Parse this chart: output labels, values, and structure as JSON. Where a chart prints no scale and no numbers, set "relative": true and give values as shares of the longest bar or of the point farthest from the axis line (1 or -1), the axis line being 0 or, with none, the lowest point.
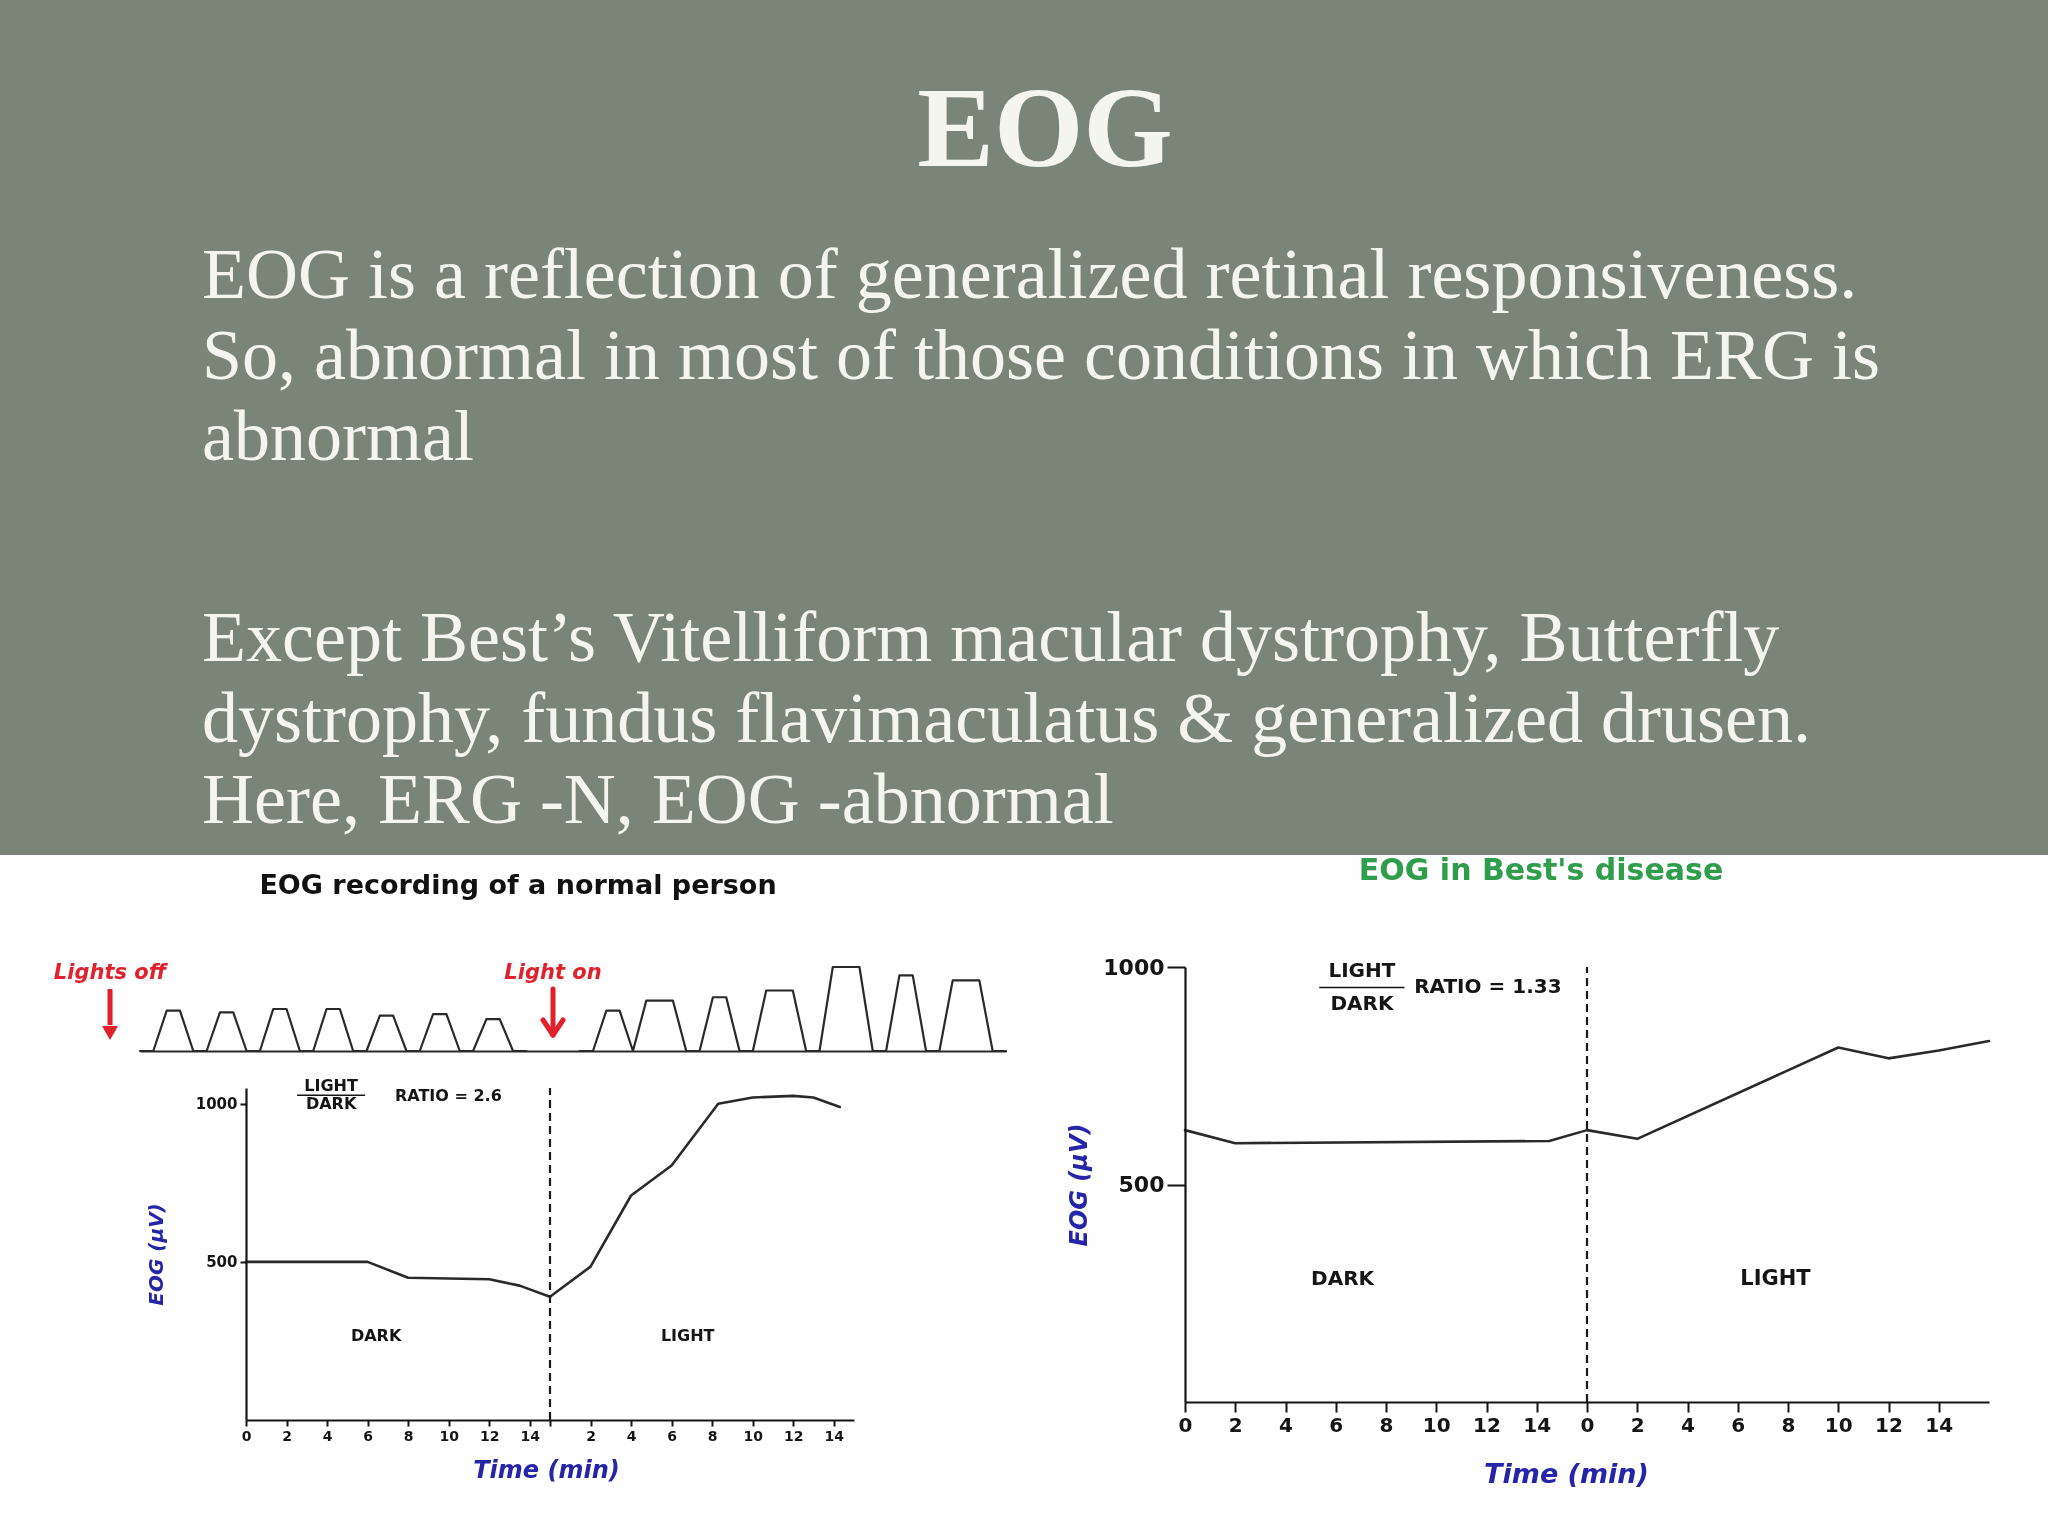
{
  "chart_data": [
    {
      "type": "line",
      "relative": true,
      "title": "EOG recording of a normal person",
      "color": "#2a2a2a",
      "tick_labels": false,
      "categories": [
        null,
        null,
        null,
        null,
        null,
        null,
        null,
        null,
        null,
        null,
        null,
        null,
        null,
        null,
        null,
        null,
        null,
        null,
        null,
        null,
        null,
        null,
        null,
        null,
        null,
        null,
        null,
        null,
        null,
        null,
        null,
        null,
        null,
        null,
        null,
        null,
        null,
        null,
        null,
        null,
        null,
        null,
        null,
        null,
        null,
        null,
        null,
        null,
        null,
        null,
        null,
        null,
        null,
        null,
        null,
        null,
        null,
        null,
        null,
        null,
        null,
        null,
        null,
        null,
        null,
        null
      ],
      "values": [
        0,
        0,
        0.48,
        0.48,
        0,
        0,
        0.46,
        0.46,
        0,
        0,
        0.5,
        0.5,
        0,
        0,
        0.5,
        0.5,
        0,
        0,
        0.42,
        0.42,
        0,
        0,
        0.44,
        0.44,
        0,
        0,
        0.38,
        0.38,
        0,
        0,
        null,
        null,
        null,
        0,
        0,
        0.48,
        0.48,
        0,
        0.6,
        0.6,
        0.6,
        0,
        0,
        0.64,
        0.64,
        0,
        0,
        0.72,
        0.72,
        0.72,
        0,
        0,
        1,
        1,
        1,
        0,
        0,
        0.9,
        0.9,
        0,
        0,
        0.84,
        0.84,
        0.84,
        0,
        0
      ],
      "annotations": [
        "Lights off",
        "Light on"
      ]
    },
    {
      "type": "line",
      "ylabel": "EOG (μV)",
      "color": "#1a1a1a",
      "x": [
        0,
        6,
        8,
        12,
        13.5,
        15
      ],
      "values": [
        500,
        500,
        450,
        445,
        425,
        390
      ],
      "xlim": [
        0,
        15
      ],
      "ylim": [
        0,
        1050
      ],
      "xticks": [
        0,
        2,
        4,
        6,
        8,
        10,
        12,
        14
      ],
      "yticks": [
        500,
        1000
      ],
      "annotations": [
        "LIGHT",
        "DARK",
        "RATIO = 2.6",
        "DARK"
      ]
    },
    {
      "type": "line",
      "xlabel": "Time (min)",
      "color": "#1a1a1a",
      "x": [
        0,
        2,
        4,
        6,
        8.3,
        10,
        12,
        13,
        14.3
      ],
      "values": [
        390,
        485,
        710,
        805,
        1000,
        1020,
        1025,
        1020,
        990
      ],
      "xlim": [
        0,
        15
      ],
      "ylim": [
        0,
        1050
      ],
      "xticks": [
        {
          "value": 0,
          "label": null
        },
        2,
        4,
        6,
        8,
        10,
        12,
        14
      ],
      "tick_labels": "x",
      "ref_lines": [
        {
          "axis": "x",
          "value": 0,
          "line_style": "dashed",
          "color": "#1a1a1a"
        }
      ],
      "annotations": [
        "LIGHT"
      ]
    },
    {
      "type": "line",
      "ylabel": "EOG (μV)",
      "color": "#1a1a1a",
      "x": [
        0,
        2,
        14.5,
        16
      ],
      "values": [
        625,
        595,
        600,
        625
      ],
      "xlim": [
        0,
        16
      ],
      "ylim": [
        0,
        1000
      ],
      "xticks": [
        0,
        2,
        4,
        6,
        8,
        10,
        12,
        14
      ],
      "yticks": [
        500,
        1000
      ],
      "annotations": [
        "LIGHT",
        "DARK",
        "RATIO = 1.33",
        "DARK"
      ]
    },
    {
      "type": "line",
      "title": "EOG in Best's disease",
      "xlabel": "Time (min)",
      "color": "#1a1a1a",
      "x": [
        0,
        2,
        10,
        12,
        14,
        16
      ],
      "values": [
        625,
        605,
        815,
        790,
        808,
        830
      ],
      "xlim": [
        0,
        16
      ],
      "ylim": [
        0,
        1000
      ],
      "xticks": [
        0,
        2,
        4,
        6,
        8,
        10,
        12,
        14
      ],
      "tick_labels": "x",
      "ref_lines": [
        {
          "axis": "x",
          "value": 0,
          "line_style": "dashed",
          "color": "#1a1a1a"
        }
      ],
      "annotations": [
        "LIGHT"
      ]
    },
    {
      "type": "other",
      "title": "EOG",
      "annotations": [
        "EOG is a reflection of generalized retinal responsiveness. So, abnormal in most of those conditions in which ERG is abnormal",
        "Except Best’s Vitelliform macular dystrophy, Butterfly dystrophy, fundus flavimaculatus & generalized drusen. Here, ERG -N, EOG -abnormal"
      ]
    }
  ]
}
